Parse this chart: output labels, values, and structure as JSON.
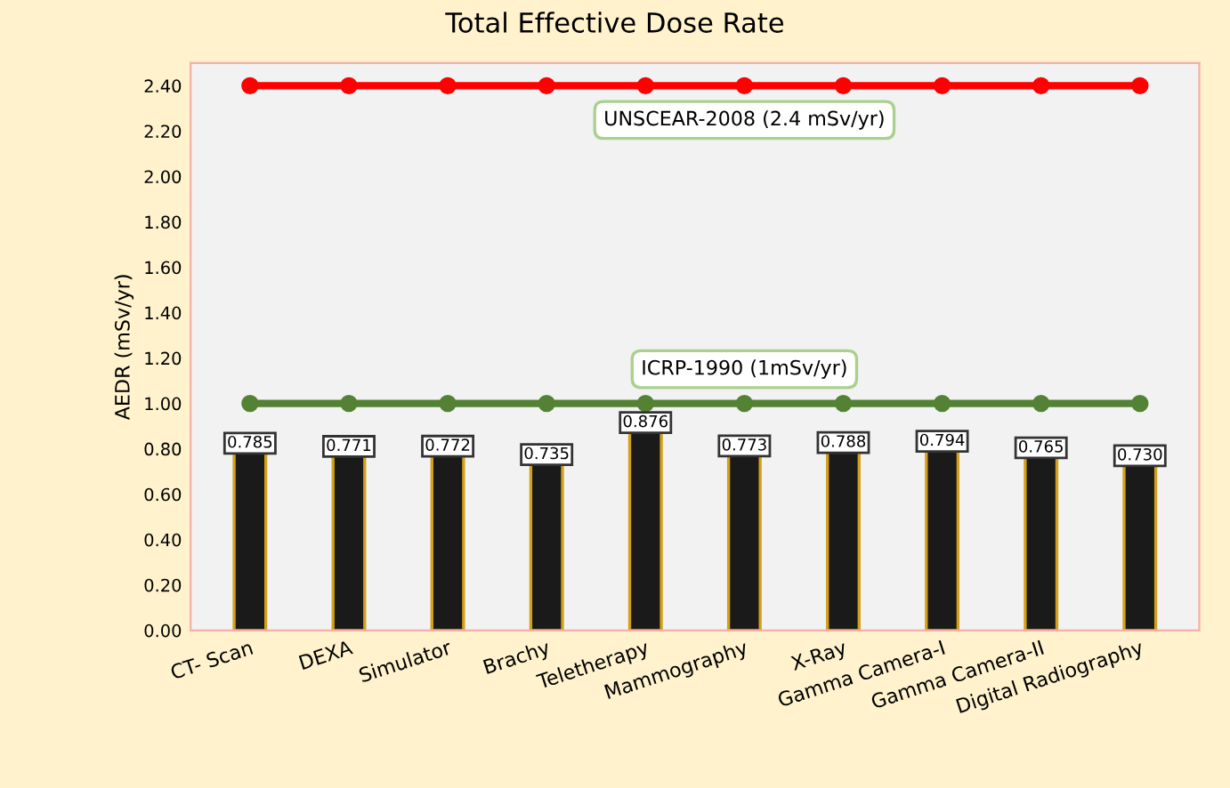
{
  "chart_data": {
    "type": "bar",
    "title": "Total Effective Dose Rate",
    "ylabel": "AEDR (mSv/yr)",
    "categories": [
      "CT- Scan",
      "DEXA",
      "Simulator",
      "Brachy",
      "Teletherapy",
      "Mammography",
      "X-Ray",
      "Gamma Camera-I",
      "Gamma Camera-II",
      "Digital Radiography"
    ],
    "series": [
      {
        "color": "#1a1a1a",
        "values": [
          0.785,
          0.771,
          0.772,
          0.735,
          0.876,
          0.773,
          0.788,
          0.794,
          0.765,
          0.73
        ],
        "value_labels": [
          "0.785",
          "0.771",
          "0.772",
          "0.735",
          "0.876",
          "0.773",
          "0.788",
          "0.794",
          "0.765",
          "0.730"
        ]
      },
      {
        "type": "line",
        "name": "UNSCEAR-2008 (2.4 mSv/yr)",
        "color": "#ff0000",
        "values": [
          2.4,
          2.4,
          2.4,
          2.4,
          2.4,
          2.4,
          2.4,
          2.4,
          2.4,
          2.4
        ]
      },
      {
        "type": "line",
        "name": "ICRP-1990 (1mSv/yr)",
        "color": "#548235",
        "values": [
          1.0,
          1.0,
          1.0,
          1.0,
          1.0,
          1.0,
          1.0,
          1.0,
          1.0,
          1.0
        ]
      }
    ],
    "ylim": [
      0,
      2.5
    ],
    "yticks": [
      "0.00",
      "0.20",
      "0.40",
      "0.60",
      "0.80",
      "1.00",
      "1.20",
      "1.40",
      "1.60",
      "1.80",
      "2.00",
      "2.20",
      "2.40"
    ],
    "grid": false,
    "marker": "circle",
    "line_style": "solid"
  }
}
